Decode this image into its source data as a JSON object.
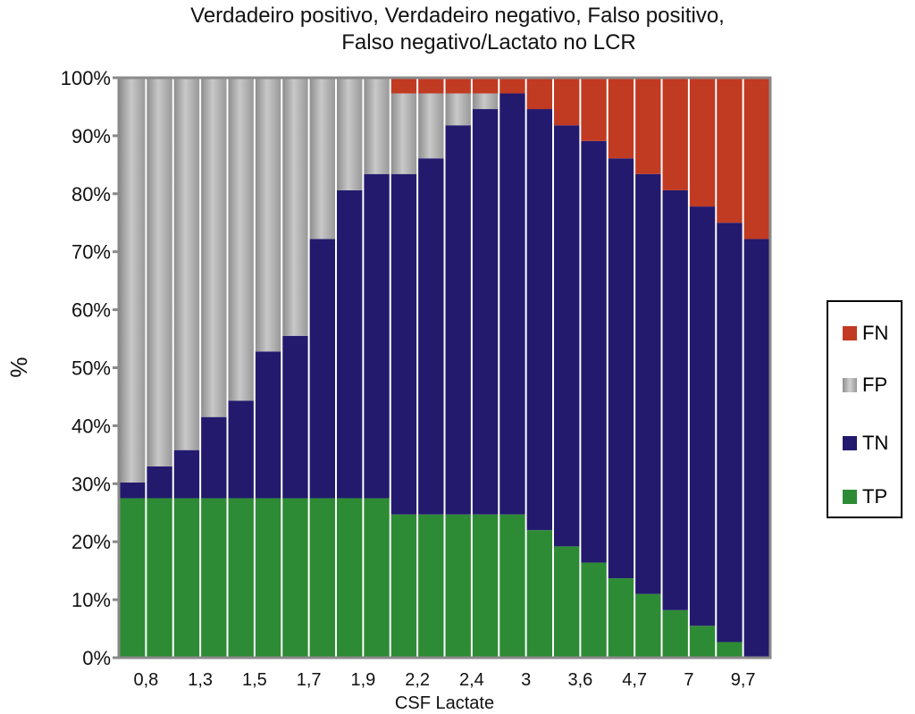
{
  "chart_data": {
    "type": "bar",
    "stacked": true,
    "title_line1": "Verdadeiro positivo, Verdadeiro negativo, Falso positivo,",
    "title_line2": "Falso negativo/Lactato no LCR",
    "xlabel": "CSF Lactate",
    "ylabel": "%",
    "ylim": [
      0,
      100
    ],
    "yticks": [
      "0%",
      "10%",
      "20%",
      "30%",
      "40%",
      "50%",
      "60%",
      "70%",
      "80%",
      "90%",
      "100%"
    ],
    "categories": [
      "",
      "0,8",
      "",
      "1,3",
      "",
      "1,5",
      "",
      "1,7",
      "",
      "1,9",
      "",
      "2,2",
      "",
      "2,4",
      "",
      "3",
      "",
      "3,6",
      "",
      "4,7",
      "",
      "7",
      "",
      "9,7"
    ],
    "series": [
      {
        "name": "TP",
        "color": "#2e8b35",
        "values": [
          27.5,
          27.5,
          27.5,
          27.5,
          27.5,
          27.5,
          27.5,
          27.5,
          27.5,
          27.5,
          24.7,
          24.7,
          24.7,
          24.7,
          24.7,
          22,
          19.2,
          16.4,
          13.7,
          11,
          8.2,
          5.5,
          2.7,
          0
        ]
      },
      {
        "name": "TN",
        "color": "#231a6e",
        "values": [
          2.7,
          5.5,
          8.3,
          14,
          16.8,
          25.3,
          28,
          44.7,
          53.1,
          55.9,
          58.7,
          61.4,
          67.1,
          69.9,
          72.6,
          72.6,
          72.6,
          72.7,
          72.4,
          72.4,
          72.4,
          72.3,
          72.3,
          72.2
        ]
      },
      {
        "name": "FP",
        "color": "#b4b4b4",
        "values": [
          69.8,
          67,
          64.2,
          58.5,
          55.7,
          47.2,
          44.5,
          27.8,
          19.4,
          16.6,
          13.9,
          11.2,
          5.5,
          2.7,
          0,
          0,
          0,
          0,
          0,
          0,
          0,
          0,
          0,
          0
        ]
      },
      {
        "name": "FN",
        "color": "#c13a22",
        "values": [
          0,
          0,
          0,
          0,
          0,
          0,
          0,
          0,
          0,
          0,
          2.7,
          2.7,
          2.7,
          2.7,
          2.7,
          5.4,
          8.2,
          10.9,
          13.9,
          16.6,
          19.4,
          22.2,
          25,
          27.8
        ]
      }
    ],
    "legend": [
      "FN",
      "FP",
      "TN",
      "TP"
    ],
    "legend_position": "right"
  }
}
